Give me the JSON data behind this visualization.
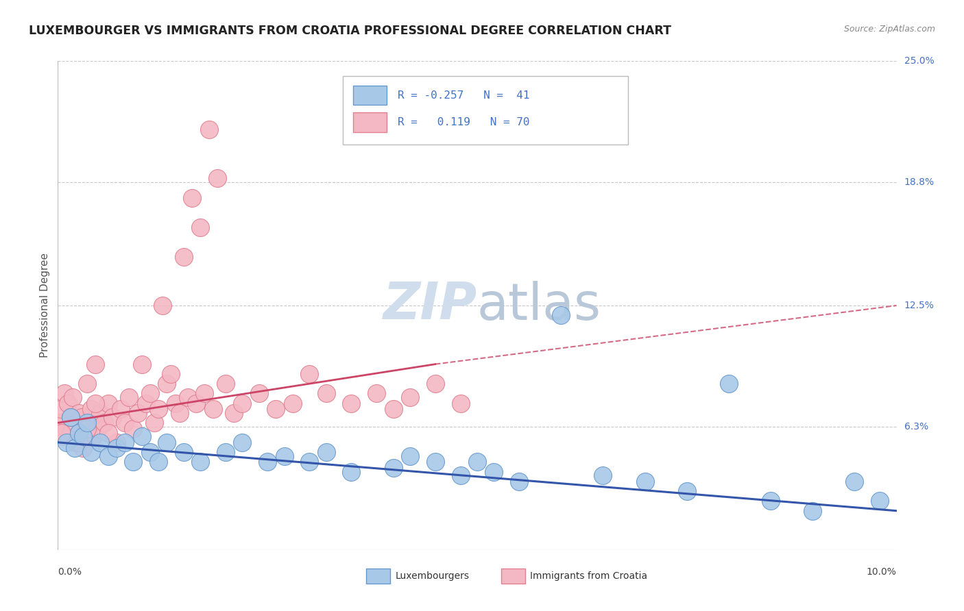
{
  "title": "LUXEMBOURGER VS IMMIGRANTS FROM CROATIA PROFESSIONAL DEGREE CORRELATION CHART",
  "source": "Source: ZipAtlas.com",
  "ylabel": "Professional Degree",
  "xlim": [
    0.0,
    10.0
  ],
  "ylim": [
    0.0,
    25.0
  ],
  "ytick_vals": [
    6.3,
    12.5,
    18.8,
    25.0
  ],
  "ytick_labels": [
    "6.3%",
    "12.5%",
    "18.8%",
    "25.0%"
  ],
  "color_blue": "#a8c8e8",
  "color_pink": "#f4b8c4",
  "edge_blue": "#6699cc",
  "edge_pink": "#e08090",
  "line_color_blue": "#3355aa",
  "line_color_pink": "#cc4466",
  "watermark_color": "#d0dded",
  "background_color": "#ffffff",
  "legend_color": "#4472c4",
  "blue_scatter": [
    [
      0.1,
      5.5
    ],
    [
      0.15,
      6.8
    ],
    [
      0.2,
      5.2
    ],
    [
      0.25,
      6.0
    ],
    [
      0.3,
      5.8
    ],
    [
      0.35,
      6.5
    ],
    [
      0.4,
      5.0
    ],
    [
      0.5,
      5.5
    ],
    [
      0.6,
      4.8
    ],
    [
      0.7,
      5.2
    ],
    [
      0.8,
      5.5
    ],
    [
      0.9,
      4.5
    ],
    [
      1.0,
      5.8
    ],
    [
      1.1,
      5.0
    ],
    [
      1.2,
      4.5
    ],
    [
      1.3,
      5.5
    ],
    [
      1.5,
      5.0
    ],
    [
      1.7,
      4.5
    ],
    [
      2.0,
      5.0
    ],
    [
      2.2,
      5.5
    ],
    [
      2.5,
      4.5
    ],
    [
      2.7,
      4.8
    ],
    [
      3.0,
      4.5
    ],
    [
      3.2,
      5.0
    ],
    [
      3.5,
      4.0
    ],
    [
      4.0,
      4.2
    ],
    [
      4.2,
      4.8
    ],
    [
      4.5,
      4.5
    ],
    [
      4.8,
      3.8
    ],
    [
      5.0,
      4.5
    ],
    [
      5.2,
      4.0
    ],
    [
      5.5,
      3.5
    ],
    [
      6.0,
      12.0
    ],
    [
      6.5,
      3.8
    ],
    [
      7.0,
      3.5
    ],
    [
      7.5,
      3.0
    ],
    [
      8.0,
      8.5
    ],
    [
      8.5,
      2.5
    ],
    [
      9.0,
      2.0
    ],
    [
      9.5,
      3.5
    ],
    [
      9.8,
      2.5
    ]
  ],
  "pink_scatter": [
    [
      0.02,
      6.5
    ],
    [
      0.04,
      7.2
    ],
    [
      0.06,
      5.8
    ],
    [
      0.08,
      8.0
    ],
    [
      0.1,
      6.2
    ],
    [
      0.12,
      7.5
    ],
    [
      0.15,
      6.0
    ],
    [
      0.18,
      7.8
    ],
    [
      0.2,
      6.5
    ],
    [
      0.22,
      5.5
    ],
    [
      0.25,
      7.0
    ],
    [
      0.28,
      6.8
    ],
    [
      0.3,
      5.2
    ],
    [
      0.32,
      6.0
    ],
    [
      0.35,
      8.5
    ],
    [
      0.38,
      6.5
    ],
    [
      0.4,
      7.2
    ],
    [
      0.42,
      5.8
    ],
    [
      0.45,
      9.5
    ],
    [
      0.48,
      6.2
    ],
    [
      0.5,
      7.0
    ],
    [
      0.55,
      6.5
    ],
    [
      0.6,
      7.5
    ],
    [
      0.65,
      6.8
    ],
    [
      0.7,
      5.5
    ],
    [
      0.75,
      7.2
    ],
    [
      0.8,
      6.5
    ],
    [
      0.85,
      7.8
    ],
    [
      0.9,
      6.2
    ],
    [
      0.95,
      7.0
    ],
    [
      1.0,
      9.5
    ],
    [
      1.05,
      7.5
    ],
    [
      1.1,
      8.0
    ],
    [
      1.15,
      6.5
    ],
    [
      1.2,
      7.2
    ],
    [
      1.25,
      12.5
    ],
    [
      1.3,
      8.5
    ],
    [
      1.35,
      9.0
    ],
    [
      1.4,
      7.5
    ],
    [
      1.45,
      7.0
    ],
    [
      1.5,
      15.0
    ],
    [
      1.55,
      7.8
    ],
    [
      1.6,
      18.0
    ],
    [
      1.65,
      7.5
    ],
    [
      1.7,
      16.5
    ],
    [
      1.75,
      8.0
    ],
    [
      1.8,
      21.5
    ],
    [
      1.85,
      7.2
    ],
    [
      1.9,
      19.0
    ],
    [
      2.0,
      8.5
    ],
    [
      2.1,
      7.0
    ],
    [
      2.2,
      7.5
    ],
    [
      2.4,
      8.0
    ],
    [
      2.6,
      7.2
    ],
    [
      2.8,
      7.5
    ],
    [
      3.0,
      9.0
    ],
    [
      3.2,
      8.0
    ],
    [
      3.5,
      7.5
    ],
    [
      3.8,
      8.0
    ],
    [
      4.0,
      7.2
    ],
    [
      4.2,
      7.8
    ],
    [
      4.5,
      8.5
    ],
    [
      4.8,
      7.5
    ],
    [
      0.05,
      6.0
    ],
    [
      0.15,
      6.8
    ],
    [
      0.25,
      5.5
    ],
    [
      0.35,
      6.2
    ],
    [
      0.45,
      7.5
    ],
    [
      0.6,
      6.0
    ]
  ]
}
